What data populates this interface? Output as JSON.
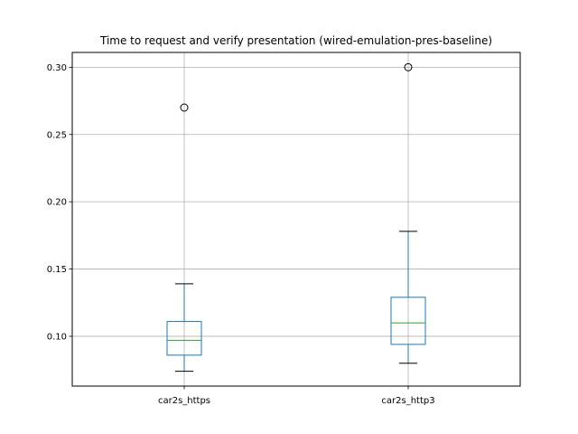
{
  "chart_data": {
    "type": "box",
    "title": "Time to request and verify presentation (wired-emulation-pres-baseline)",
    "xlabel": "",
    "ylabel": "",
    "ylim": [
      0.063,
      0.311
    ],
    "yticks": [
      0.1,
      0.15,
      0.2,
      0.25,
      0.3
    ],
    "ytick_labels": [
      "0.10",
      "0.15",
      "0.20",
      "0.25",
      "0.30"
    ],
    "grid": true,
    "categories": [
      "car2s_https",
      "car2s_http3"
    ],
    "boxes": [
      {
        "name": "car2s_https",
        "whisker_low": 0.074,
        "q1": 0.086,
        "median": 0.097,
        "q3": 0.111,
        "whisker_high": 0.139,
        "outliers": [
          0.27
        ]
      },
      {
        "name": "car2s_http3",
        "whisker_low": 0.08,
        "q1": 0.094,
        "median": 0.11,
        "q3": 0.129,
        "whisker_high": 0.178,
        "outliers": [
          0.3
        ]
      }
    ],
    "colors": {
      "box": "#1f77b4",
      "median": "#2ca02c",
      "grid": "#b0b0b0",
      "cap": "#000000"
    }
  }
}
